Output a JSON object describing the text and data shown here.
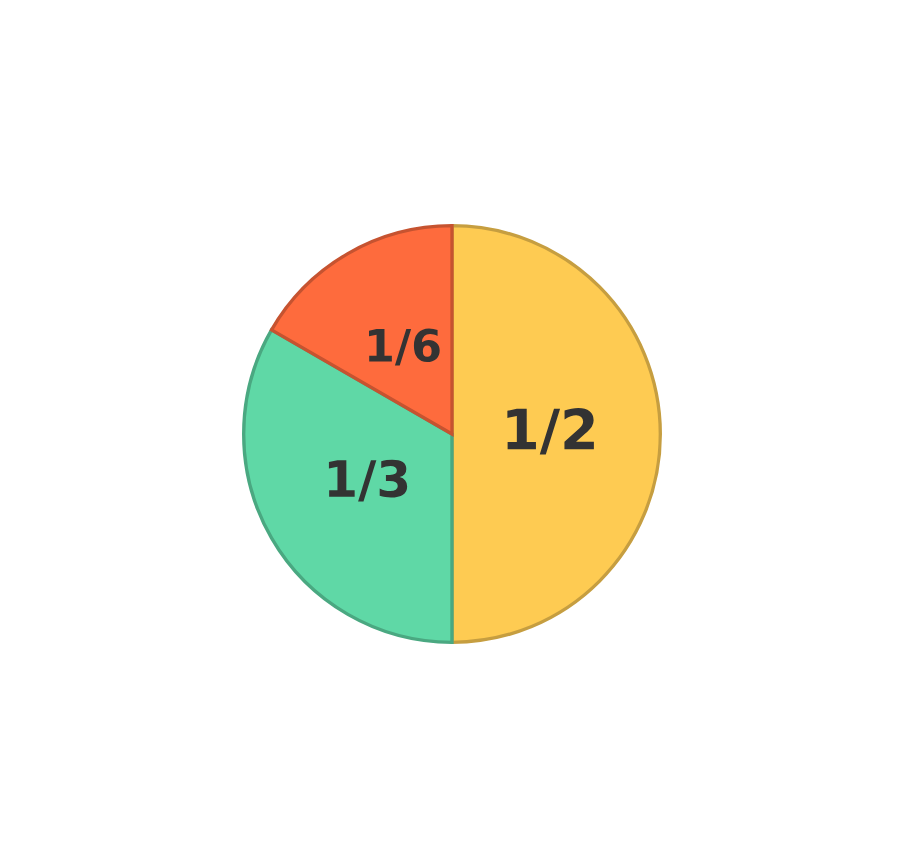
{
  "chart_data": {
    "type": "pie",
    "categories": [
      null,
      null,
      null
    ],
    "values": [
      0.5,
      0.3333,
      0.1667
    ],
    "value_labels": [
      "1/2",
      "1/3",
      "1/6"
    ],
    "colors": [
      "#fecb52",
      "#5fd8a6",
      "#fe6b3d"
    ]
  }
}
